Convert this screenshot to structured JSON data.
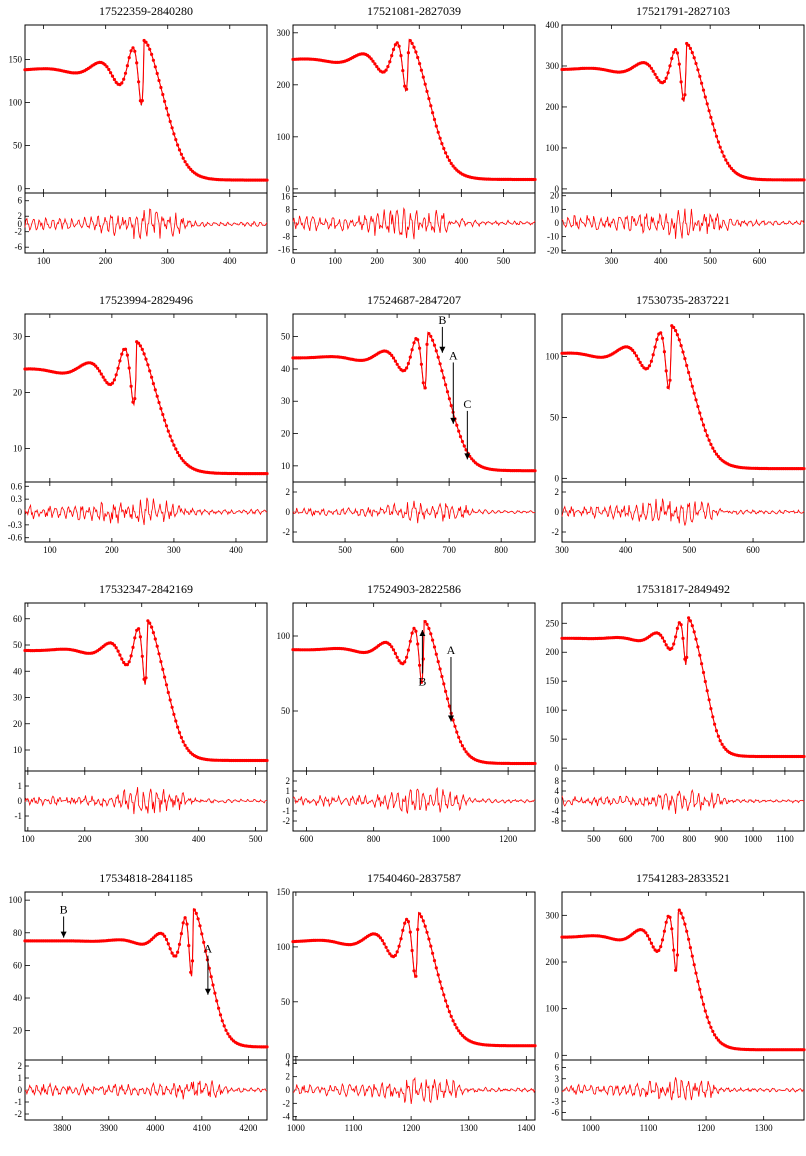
{
  "chart_data": [
    {
      "type": "line",
      "title": "17522359-2840280",
      "xlim": [
        70,
        460
      ],
      "ylim": [
        -5,
        190
      ],
      "rlim": [
        -7.5,
        8
      ],
      "yticks": [
        0,
        50,
        100,
        150
      ],
      "rticks": [
        6,
        2,
        0,
        -2,
        -6
      ],
      "xticks": [
        100,
        200,
        300,
        400
      ],
      "curve": {
        "baseline": 138,
        "final": 10,
        "peak_x": 262,
        "peak_y": 178,
        "width": 26,
        "drop_x": 305,
        "fringe_amp": 18
      },
      "residual": {
        "amp": 1.5,
        "peak_amp": 3.5
      },
      "annotations": []
    },
    {
      "type": "line",
      "title": "17521081-2827039",
      "xlim": [
        0,
        575
      ],
      "ylim": [
        -8,
        315
      ],
      "rlim": [
        -18,
        18
      ],
      "yticks": [
        0,
        100,
        200,
        300
      ],
      "rticks": [
        16,
        8,
        0,
        -8,
        -16
      ],
      "xticks": [
        0,
        100,
        200,
        300,
        400,
        500
      ],
      "curve": {
        "baseline": 248,
        "final": 18,
        "peak_x": 275,
        "peak_y": 302,
        "width": 40,
        "drop_x": 335,
        "fringe_amp": 24
      },
      "residual": {
        "amp": 4,
        "peak_amp": 8
      },
      "annotations": []
    },
    {
      "type": "line",
      "title": "17521791-2827103",
      "xlim": [
        200,
        690
      ],
      "ylim": [
        -10,
        400
      ],
      "rlim": [
        -22,
        22
      ],
      "yticks": [
        0,
        100,
        200,
        300,
        400
      ],
      "rticks": [
        20,
        10,
        0,
        -10,
        -20
      ],
      "xticks": [
        300,
        400,
        500,
        600
      ],
      "curve": {
        "baseline": 292,
        "final": 22,
        "peak_x": 452,
        "peak_y": 368,
        "width": 32,
        "drop_x": 505,
        "fringe_amp": 35
      },
      "residual": {
        "amp": 5,
        "peak_amp": 9
      },
      "annotations": []
    },
    {
      "type": "line",
      "title": "17523994-2829496",
      "xlim": [
        60,
        450
      ],
      "ylim": [
        4,
        34
      ],
      "rlim": [
        -0.7,
        0.7
      ],
      "yticks": [
        10,
        20,
        30
      ],
      "rticks": [
        0.6,
        0.3,
        0,
        -0.3,
        -0.6
      ],
      "xticks": [
        100,
        200,
        300,
        400
      ],
      "curve": {
        "baseline": 24,
        "final": 5.5,
        "peak_x": 240,
        "peak_y": 30,
        "width": 28,
        "drop_x": 285,
        "fringe_amp": 2.6
      },
      "residual": {
        "amp": 0.15,
        "peak_amp": 0.25
      },
      "annotations": []
    },
    {
      "type": "line",
      "title": "17524687-2847207",
      "xlim": [
        400,
        865
      ],
      "ylim": [
        5,
        57
      ],
      "rlim": [
        -3,
        3
      ],
      "yticks": [
        10,
        20,
        30,
        40,
        50
      ],
      "rticks": [
        2,
        0,
        -2
      ],
      "xticks": [
        500,
        600,
        700,
        800
      ],
      "curve": {
        "baseline": 43.5,
        "final": 8.5,
        "peak_x": 658,
        "peak_y": 53,
        "width": 30,
        "drop_x": 708,
        "fringe_amp": 5
      },
      "residual": {
        "amp": 0.35,
        "peak_amp": 1.2
      },
      "annotations": [
        {
          "label": "B",
          "x": 687,
          "y_from": 53,
          "y_to": 45
        },
        {
          "label": "A",
          "x": 708,
          "y_from": 42,
          "y_to": 23
        },
        {
          "label": "C",
          "x": 735,
          "y_from": 27,
          "y_to": 12
        }
      ]
    },
    {
      "type": "line",
      "title": "17530735-2837221",
      "xlim": [
        300,
        680
      ],
      "ylim": [
        -3,
        135
      ],
      "rlim": [
        -3,
        3
      ],
      "yticks": [
        0,
        50,
        100
      ],
      "rticks": [
        2,
        0,
        -2
      ],
      "xticks": [
        300,
        400,
        500,
        600
      ],
      "curve": {
        "baseline": 102,
        "final": 8,
        "peak_x": 472,
        "peak_y": 130,
        "width": 26,
        "drop_x": 515,
        "fringe_amp": 14
      },
      "residual": {
        "amp": 0.5,
        "peak_amp": 1.2
      },
      "annotations": []
    },
    {
      "type": "line",
      "title": "17532347-2842169",
      "xlim": [
        95,
        520
      ],
      "ylim": [
        2,
        66
      ],
      "rlim": [
        -2,
        2
      ],
      "yticks": [
        10,
        20,
        30,
        40,
        50,
        60
      ],
      "rticks": [
        1,
        0,
        -1
      ],
      "xticks": [
        100,
        200,
        300,
        400,
        500
      ],
      "curve": {
        "baseline": 48,
        "final": 6,
        "peak_x": 310,
        "peak_y": 61,
        "width": 24,
        "drop_x": 352,
        "fringe_amp": 6
      },
      "residual": {
        "amp": 0.3,
        "peak_amp": 0.9
      },
      "annotations": []
    },
    {
      "type": "line",
      "title": "17524903-2822586",
      "xlim": [
        560,
        1280
      ],
      "ylim": [
        10,
        122
      ],
      "rlim": [
        -3,
        3
      ],
      "yticks": [
        50,
        100
      ],
      "rticks": [
        2,
        1,
        0,
        -1,
        -2
      ],
      "xticks": [
        600,
        800,
        1000,
        1200
      ],
      "curve": {
        "baseline": 91,
        "final": 15,
        "peak_x": 950,
        "peak_y": 113,
        "width": 42,
        "drop_x": 1025,
        "fringe_amp": 12
      },
      "residual": {
        "amp": 0.5,
        "peak_amp": 1.2
      },
      "annotations": [
        {
          "label": "B",
          "x": 945,
          "y_from": 75,
          "y_to": 104,
          "label_below": true
        },
        {
          "label": "A",
          "x": 1030,
          "y_from": 86,
          "y_to": 43
        }
      ]
    },
    {
      "type": "line",
      "title": "17531817-2849492",
      "xlim": [
        400,
        1160
      ],
      "ylim": [
        -5,
        285
      ],
      "rlim": [
        -12,
        12
      ],
      "yticks": [
        0,
        50,
        100,
        150,
        200,
        250
      ],
      "rticks": [
        8,
        4,
        0,
        -4,
        -8
      ],
      "xticks": [
        500,
        600,
        700,
        800,
        900,
        1000,
        1100
      ],
      "curve": {
        "baseline": 224,
        "final": 20,
        "peak_x": 795,
        "peak_y": 268,
        "width": 36,
        "drop_x": 860,
        "fringe_amp": 18
      },
      "residual": {
        "amp": 1.8,
        "peak_amp": 5
      },
      "annotations": []
    },
    {
      "type": "line",
      "title": "17534818-2841185",
      "xlim": [
        3720,
        4240
      ],
      "ylim": [
        2,
        105
      ],
      "rlim": [
        -2.5,
        2.5
      ],
      "yticks": [
        20,
        40,
        60,
        80,
        100
      ],
      "rticks": [
        2,
        1,
        0,
        -1,
        -2
      ],
      "xticks": [
        3800,
        3900,
        4000,
        4100,
        4200
      ],
      "curve": {
        "baseline": 75,
        "final": 10,
        "peak_x": 4082,
        "peak_y": 97,
        "width": 26,
        "drop_x": 4128,
        "fringe_amp": 9
      },
      "residual": {
        "amp": 0.45,
        "peak_amp": 0.6
      },
      "annotations": [
        {
          "label": "B",
          "x": 3803,
          "y_from": 90,
          "y_to": 77
        },
        {
          "label": "A",
          "x": 4113,
          "y_from": 66,
          "y_to": 42
        }
      ]
    },
    {
      "type": "line",
      "title": "17540460-2837587",
      "xlim": [
        995,
        1415
      ],
      "ylim": [
        -3,
        150
      ],
      "rlim": [
        -4.5,
        4.5
      ],
      "yticks": [
        0,
        50,
        100,
        150
      ],
      "rticks": [
        4,
        2,
        0,
        -2,
        -4
      ],
      "xticks": [
        1000,
        1100,
        1200,
        1300,
        1400
      ],
      "curve": {
        "baseline": 105,
        "final": 10,
        "peak_x": 1212,
        "peak_y": 137,
        "width": 28,
        "drop_x": 1255,
        "fringe_amp": 13
      },
      "residual": {
        "amp": 0.8,
        "peak_amp": 1.8
      },
      "annotations": []
    },
    {
      "type": "line",
      "title": "17541283-2833521",
      "xlim": [
        950,
        1370
      ],
      "ylim": [
        -10,
        350
      ],
      "rlim": [
        -8,
        8
      ],
      "yticks": [
        0,
        100,
        200,
        300
      ],
      "rticks": [
        6,
        3,
        0,
        -3,
        -6
      ],
      "xticks": [
        1000,
        1100,
        1200,
        1300
      ],
      "curve": {
        "baseline": 254,
        "final": 12,
        "peak_x": 1152,
        "peak_y": 326,
        "width": 24,
        "drop_x": 1190,
        "fringe_amp": 28
      },
      "residual": {
        "amp": 1.3,
        "peak_amp": 2.6
      },
      "annotations": []
    }
  ],
  "colors": {
    "model": "#ff0000",
    "data": "#000000",
    "axes": "#000000"
  }
}
